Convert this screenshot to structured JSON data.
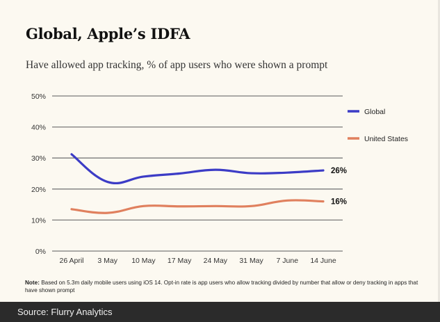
{
  "chart_data": {
    "type": "line",
    "title": "Global, Apple’s IDFA",
    "subtitle": "Have allowed app tracking, % of app users who were shown a prompt",
    "xlabel": "",
    "ylabel": "",
    "categories": [
      "26 April",
      "3 May",
      "10 May",
      "17 May",
      "24 May",
      "31 May",
      "7 June",
      "14 June"
    ],
    "y_ticks": [
      "0%",
      "10%",
      "20%",
      "30%",
      "40%",
      "50%"
    ],
    "ylim": [
      0,
      50
    ],
    "grid": true,
    "legend_position": "right",
    "series": [
      {
        "name": "Global",
        "color": "#3c3cc6",
        "values": [
          31.2,
          22.3,
          24.0,
          25.0,
          26.2,
          25.1,
          25.3,
          26.0
        ],
        "end_label": "26%"
      },
      {
        "name": "United States",
        "color": "#e0805e",
        "values": [
          13.5,
          12.3,
          14.5,
          14.4,
          14.5,
          14.5,
          16.3,
          16.0
        ],
        "end_label": "16%"
      }
    ]
  },
  "note": {
    "label": "Note:",
    "text": " Based on 5.3m daily mobile users using iOS 14. Opt-in rate is app users who allow tracking divided by number that allow or deny tracking in apps that have shown prompt"
  },
  "source": "Source: Flurry Analytics"
}
